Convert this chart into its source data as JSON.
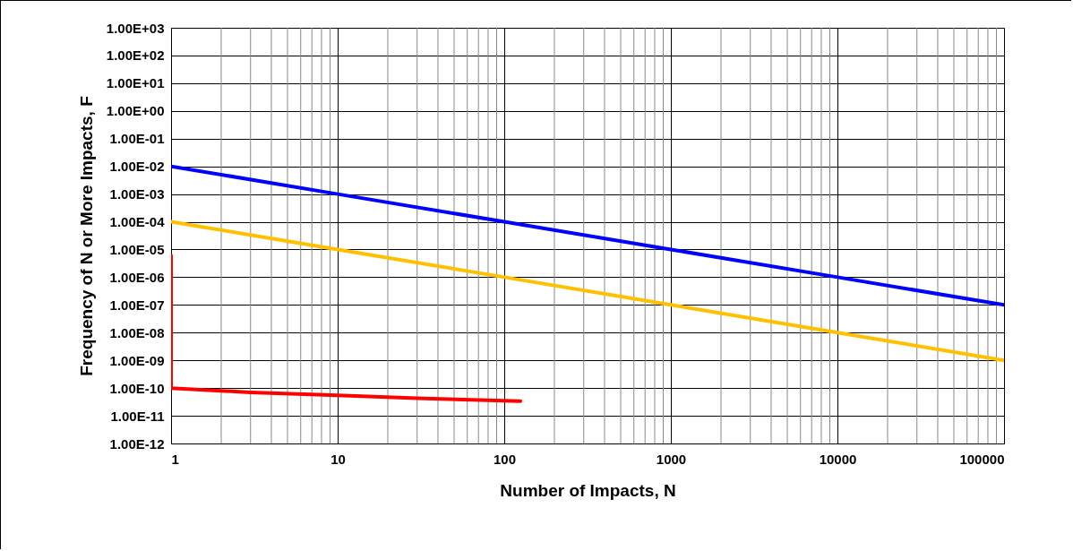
{
  "chart_data": {
    "type": "line",
    "xlabel": "Number of Impacts, N",
    "ylabel": "Frequency of N or More Impacts, F",
    "log": "xy",
    "grid": true,
    "marker": "none",
    "line_style": "solid",
    "xlim": [
      1,
      100000
    ],
    "xticks": [
      1,
      10,
      100,
      1000,
      10000,
      100000
    ],
    "ylim": [
      1e-12,
      1000
    ],
    "yticks": [
      {
        "value": 1000,
        "label": "1.00E+03"
      },
      {
        "value": 100,
        "label": "1.00E+02"
      },
      {
        "value": 10,
        "label": "1.00E+01"
      },
      {
        "value": 1,
        "label": "1.00E+00"
      },
      {
        "value": 0.1,
        "label": "1.00E-01"
      },
      {
        "value": 0.01,
        "label": "1.00E-02"
      },
      {
        "value": 0.001,
        "label": "1.00E-03"
      },
      {
        "value": 0.0001,
        "label": "1.00E-04"
      },
      {
        "value": 1e-05,
        "label": "1.00E-05"
      },
      {
        "value": 1e-06,
        "label": "1.00E-06"
      },
      {
        "value": 1e-07,
        "label": "1.00E-07"
      },
      {
        "value": 1e-08,
        "label": "1.00E-08"
      },
      {
        "value": 1e-09,
        "label": "1.00E-09"
      },
      {
        "value": 1e-10,
        "label": "1.00E-10"
      },
      {
        "value": 1e-11,
        "label": "1.00E-11"
      },
      {
        "value": 1e-12,
        "label": "1.00E-12"
      }
    ],
    "series": [
      {
        "color": "#0000ff",
        "x": [
          1,
          10,
          100,
          1000,
          10000,
          100000
        ],
        "values": [
          0.01,
          0.001,
          0.0001,
          1e-05,
          1e-06,
          1e-07
        ]
      },
      {
        "color": "#ffc000",
        "x": [
          1,
          10,
          100,
          1000,
          10000,
          100000
        ],
        "values": [
          0.0001,
          1e-05,
          1e-06,
          1e-07,
          1e-08,
          1e-09
        ]
      },
      {
        "color": "#ff0000",
        "x": [
          1,
          1,
          3,
          10,
          30,
          125
        ],
        "values": [
          6e-06,
          1e-10,
          7e-11,
          5.5e-11,
          4.3e-11,
          3.4e-11
        ]
      }
    ]
  }
}
